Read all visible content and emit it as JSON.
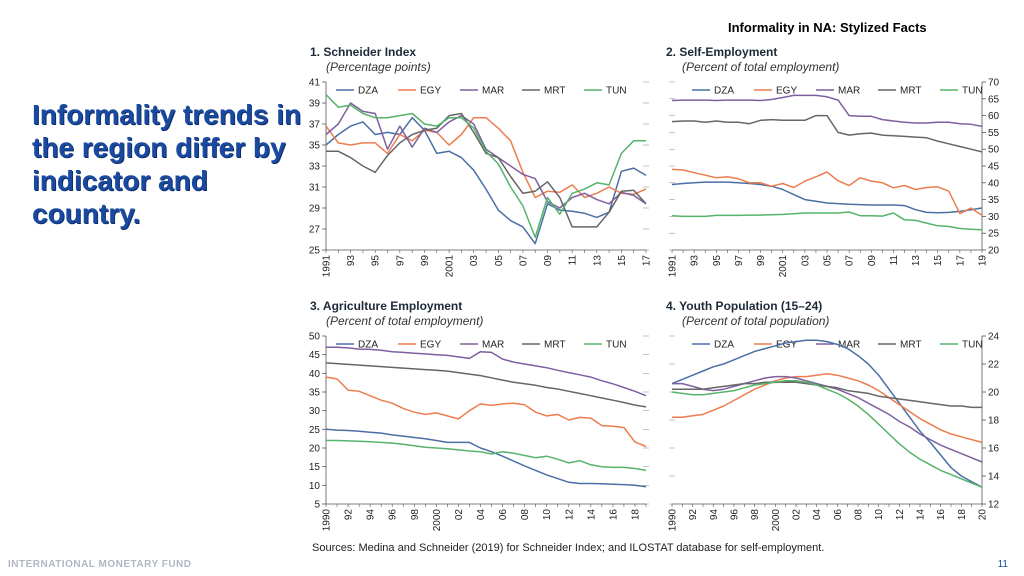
{
  "page": {
    "header": "Informality in NA: Stylized Facts",
    "headline": "Informality trends in the region differ by indicator and country.",
    "org": "INTERNATIONAL MONETARY FUND",
    "page_number": "11",
    "source": "Sources: Medina and Schneider (2019) for Schneider Index; and ILOSTAT database for self-employment."
  },
  "colors": {
    "DZA": "#4a6fa5",
    "EGY": "#ed7d4f",
    "MAR": "#7f5f9f",
    "MRT": "#666666",
    "TUN": "#56b36a"
  },
  "chart_data": [
    {
      "type": "line",
      "title": "1. Schneider Index",
      "subtitle": "(Percentage points)",
      "axis_side": "left",
      "ylim": [
        25,
        41
      ],
      "yticks": [
        25,
        27,
        29,
        31,
        33,
        35,
        37,
        39,
        41
      ],
      "x": [
        1991,
        1992,
        1993,
        1994,
        1995,
        1996,
        1997,
        1998,
        1999,
        2000,
        2001,
        2002,
        2003,
        2004,
        2005,
        2006,
        2007,
        2008,
        2009,
        2010,
        2011,
        2012,
        2013,
        2014,
        2015,
        2016,
        2017
      ],
      "xtick_labels": [
        "1991",
        "93",
        "95",
        "97",
        "99",
        "2001",
        "03",
        "05",
        "07",
        "09",
        "11",
        "13",
        "15",
        "17"
      ],
      "legend": [
        "DZA",
        "EGY",
        "MAR",
        "MRT",
        "TUN"
      ],
      "series": [
        {
          "name": "DZA",
          "values": [
            35,
            36,
            36.8,
            37.2,
            36,
            36.2,
            36,
            37.6,
            36.4,
            34.2,
            34.4,
            33.8,
            32.6,
            30.8,
            28.8,
            27.8,
            27.2,
            25.6,
            29.4,
            28.8,
            28.7,
            28.5,
            28.1,
            28.6,
            32.5,
            32.8,
            32.1
          ]
        },
        {
          "name": "EGY",
          "values": [
            36.8,
            35.2,
            35,
            35.2,
            35.2,
            34.2,
            36,
            35.4,
            36.4,
            36.2,
            35,
            36,
            37.6,
            37.6,
            36.6,
            35.4,
            32.4,
            30,
            30.6,
            30.5,
            31.2,
            30,
            30.4,
            31,
            30.4,
            30.3,
            30.8
          ]
        },
        {
          "name": "MAR",
          "values": [
            36,
            37,
            39,
            38.2,
            38,
            34.6,
            36.8,
            34.8,
            36.6,
            36.2,
            37.2,
            37.8,
            37,
            34.6,
            33.8,
            33,
            32.2,
            31.8,
            29.6,
            29,
            30,
            30.4,
            29.8,
            29.4,
            30.5,
            30.2,
            29.4
          ]
        },
        {
          "name": "MRT",
          "values": [
            34.4,
            34.4,
            33.8,
            33,
            32.4,
            34,
            35.2,
            36,
            36.4,
            36.6,
            37.8,
            38,
            36.2,
            34.2,
            33.8,
            32,
            30.4,
            30.6,
            31.5,
            30,
            27.2,
            27.2,
            27.2,
            28.6,
            30.6,
            30.7,
            29.4
          ]
        },
        {
          "name": "TUN",
          "values": [
            39.8,
            38.6,
            38.8,
            38,
            37.6,
            37.6,
            37.8,
            38,
            37,
            36.8,
            37.6,
            37.6,
            36.6,
            34.4,
            33.2,
            31,
            29.2,
            26.2,
            30,
            28.4,
            30.4,
            30.8,
            31.4,
            31.2,
            34.2,
            35.4,
            35.4
          ]
        }
      ]
    },
    {
      "type": "line",
      "title": "2. Self-Employment",
      "subtitle": "(Percent of total employment)",
      "axis_side": "right",
      "ylim": [
        20,
        70
      ],
      "yticks": [
        20,
        25,
        30,
        35,
        40,
        45,
        50,
        55,
        60,
        65,
        70
      ],
      "x": [
        1991,
        1992,
        1993,
        1994,
        1995,
        1996,
        1997,
        1998,
        1999,
        2000,
        2001,
        2002,
        2003,
        2004,
        2005,
        2006,
        2007,
        2008,
        2009,
        2010,
        2011,
        2012,
        2013,
        2014,
        2015,
        2016,
        2017,
        2018,
        2019
      ],
      "xtick_labels": [
        "1991",
        "93",
        "95",
        "97",
        "99",
        "2001",
        "03",
        "05",
        "07",
        "09",
        "11",
        "13",
        "15",
        "17",
        "19"
      ],
      "legend": [
        "DZA",
        "EGY",
        "MAR",
        "MRT",
        "TUN"
      ],
      "series": [
        {
          "name": "DZA",
          "values": [
            39.5,
            39.8,
            40,
            40.2,
            40.2,
            40.2,
            40,
            39.8,
            39.5,
            39,
            38,
            36.5,
            35,
            34.5,
            34,
            33.8,
            33.6,
            33.5,
            33.4,
            33.4,
            33.4,
            33.2,
            32,
            31.2,
            31.1,
            31.2,
            31.5,
            32,
            32.5
          ]
        },
        {
          "name": "EGY",
          "values": [
            44,
            43.8,
            43,
            42.3,
            41.5,
            41.8,
            41.2,
            40,
            40,
            39,
            39.8,
            38.6,
            40.5,
            41.8,
            43.2,
            40.6,
            39.2,
            41.5,
            40.5,
            40,
            38.5,
            39.2,
            38,
            38.6,
            38.8,
            37.5,
            30.8,
            32.5,
            30.3
          ]
        },
        {
          "name": "MAR",
          "values": [
            64.5,
            64.6,
            64.6,
            64.6,
            64.5,
            64.6,
            64.6,
            64.6,
            64.5,
            64.8,
            65.4,
            66,
            66,
            66,
            65.6,
            64.6,
            60,
            59.8,
            59.8,
            58.8,
            58.4,
            58,
            57.8,
            57.8,
            58,
            58,
            57.6,
            57.4,
            56.8
          ]
        },
        {
          "name": "MRT",
          "values": [
            58.2,
            58.4,
            58.4,
            58,
            58.4,
            58,
            58,
            57.6,
            58.6,
            58.8,
            58.6,
            58.6,
            58.6,
            60,
            60,
            55,
            54.2,
            54.6,
            54.8,
            54.2,
            54,
            53.8,
            53.6,
            53.4,
            52.4,
            51.6,
            50.8,
            50,
            49.2
          ]
        },
        {
          "name": "TUN",
          "values": [
            30.2,
            30,
            30,
            30,
            30.3,
            30.3,
            30.3,
            30.4,
            30.4,
            30.5,
            30.6,
            30.8,
            31,
            31,
            31,
            31,
            31.3,
            30.2,
            30.2,
            30.1,
            31,
            29,
            28.8,
            28,
            27.2,
            27,
            26.4,
            26.2,
            26
          ]
        }
      ]
    },
    {
      "type": "line",
      "title": "3. Agriculture Employment",
      "subtitle": "(Percent of total employment)",
      "axis_side": "left",
      "ylim": [
        5,
        50
      ],
      "yticks": [
        5,
        10,
        15,
        20,
        25,
        30,
        35,
        40,
        45,
        50
      ],
      "x": [
        1990,
        1991,
        1992,
        1993,
        1994,
        1995,
        1996,
        1997,
        1998,
        1999,
        2000,
        2001,
        2002,
        2003,
        2004,
        2005,
        2006,
        2007,
        2008,
        2009,
        2010,
        2011,
        2012,
        2013,
        2014,
        2015,
        2016,
        2017,
        2018,
        2019
      ],
      "xtick_labels": [
        "1990",
        "92",
        "94",
        "96",
        "98",
        "2000",
        "02",
        "04",
        "06",
        "08",
        "10",
        "12",
        "14",
        "16",
        "18"
      ],
      "legend": [
        "DZA",
        "EGY",
        "MAR",
        "MRT",
        "TUN"
      ],
      "series": [
        {
          "name": "DZA",
          "values": [
            25,
            24.8,
            24.7,
            24.5,
            24.2,
            24,
            23.5,
            23.2,
            22.8,
            22.5,
            22,
            21.5,
            21.5,
            21.5,
            20,
            19,
            17.8,
            16.5,
            15.2,
            14,
            12.8,
            11.8,
            10.8,
            10.5,
            10.5,
            10.4,
            10.3,
            10.2,
            10,
            9.6
          ]
        },
        {
          "name": "EGY",
          "values": [
            39,
            38.5,
            35.5,
            35.2,
            34,
            32.8,
            32,
            30.6,
            29.6,
            29,
            29.4,
            28.6,
            27.8,
            30,
            31.8,
            31.4,
            31.8,
            32,
            31.6,
            29.6,
            28.6,
            29,
            27.5,
            28.2,
            28,
            26,
            25.8,
            25.5,
            21.6,
            20.4
          ]
        },
        {
          "name": "MAR",
          "values": [
            47,
            47,
            46.8,
            46.5,
            46.4,
            46.2,
            45.8,
            45.6,
            45.4,
            45.2,
            45,
            44.8,
            44.4,
            44,
            45.8,
            45.6,
            43.8,
            43,
            42.5,
            42,
            41.5,
            40.8,
            40.2,
            39.6,
            39,
            38,
            37.2,
            36.2,
            35.2,
            34
          ]
        },
        {
          "name": "MRT",
          "values": [
            42.8,
            42.6,
            42.4,
            42.2,
            42,
            41.8,
            41.6,
            41.4,
            41.2,
            41,
            40.8,
            40.6,
            40.2,
            39.8,
            39.4,
            38.8,
            38.2,
            37.6,
            37.2,
            36.8,
            36.2,
            35.8,
            35.2,
            34.6,
            34,
            33.4,
            32.8,
            32.2,
            31.5,
            31
          ]
        },
        {
          "name": "TUN",
          "values": [
            22,
            22,
            21.9,
            21.8,
            21.7,
            21.5,
            21.3,
            21,
            20.6,
            20.2,
            20,
            19.8,
            19.5,
            19.2,
            19,
            18.4,
            19,
            18.6,
            18,
            17.4,
            17.8,
            17,
            16,
            16.6,
            15.5,
            15,
            14.8,
            14.8,
            14.5,
            14
          ]
        }
      ]
    },
    {
      "type": "line",
      "title": "4. Youth Population (15–24)",
      "subtitle": "(Percent of total population)",
      "axis_side": "right",
      "ylim": [
        12,
        24
      ],
      "yticks": [
        12,
        14,
        16,
        18,
        20,
        22,
        24
      ],
      "x": [
        1990,
        1991,
        1992,
        1993,
        1994,
        1995,
        1996,
        1997,
        1998,
        1999,
        2000,
        2001,
        2002,
        2003,
        2004,
        2005,
        2006,
        2007,
        2008,
        2009,
        2010,
        2011,
        2012,
        2013,
        2014,
        2015,
        2016,
        2017,
        2018,
        2019,
        2020
      ],
      "xtick_labels": [
        "1990",
        "92",
        "94",
        "96",
        "98",
        "2000",
        "02",
        "04",
        "06",
        "08",
        "10",
        "12",
        "14",
        "16",
        "18",
        "20"
      ],
      "legend": [
        "DZA",
        "EGY",
        "MAR",
        "MRT",
        "TUN"
      ],
      "series": [
        {
          "name": "DZA",
          "values": [
            20.6,
            20.9,
            21.2,
            21.5,
            21.8,
            22,
            22.3,
            22.6,
            22.9,
            23.1,
            23.3,
            23.5,
            23.6,
            23.7,
            23.7,
            23.6,
            23.4,
            23.1,
            22.6,
            22,
            21.2,
            20.2,
            19.2,
            18.2,
            17.2,
            16.4,
            15.5,
            14.6,
            14,
            13.6,
            13.2
          ]
        },
        {
          "name": "EGY",
          "values": [
            18.2,
            18.2,
            18.3,
            18.4,
            18.7,
            19,
            19.4,
            19.8,
            20.2,
            20.5,
            20.8,
            21,
            21.1,
            21.1,
            21.2,
            21.3,
            21.2,
            21,
            20.8,
            20.5,
            20.1,
            19.6,
            19.1,
            18.6,
            18.1,
            17.7,
            17.3,
            17,
            16.8,
            16.6,
            16.4
          ]
        },
        {
          "name": "MAR",
          "values": [
            20.6,
            20.6,
            20.4,
            20.2,
            20.1,
            20.2,
            20.4,
            20.6,
            20.8,
            21,
            21.1,
            21.1,
            21,
            20.8,
            20.6,
            20.4,
            20.2,
            19.9,
            19.6,
            19.2,
            18.8,
            18.4,
            17.9,
            17.5,
            17,
            16.6,
            16.2,
            15.9,
            15.6,
            15.3,
            15
          ]
        },
        {
          "name": "MRT",
          "values": [
            20.2,
            20.2,
            20.2,
            20.2,
            20.3,
            20.4,
            20.5,
            20.6,
            20.6,
            20.7,
            20.7,
            20.7,
            20.7,
            20.6,
            20.5,
            20.4,
            20.3,
            20.1,
            20,
            19.9,
            19.7,
            19.6,
            19.5,
            19.4,
            19.3,
            19.2,
            19.1,
            19,
            19,
            18.9,
            18.9
          ]
        },
        {
          "name": "TUN",
          "values": [
            20,
            19.9,
            19.8,
            19.8,
            19.9,
            20,
            20.1,
            20.3,
            20.5,
            20.6,
            20.7,
            20.8,
            20.8,
            20.7,
            20.5,
            20.2,
            19.9,
            19.5,
            19,
            18.4,
            17.7,
            17,
            16.3,
            15.7,
            15.2,
            14.8,
            14.4,
            14.1,
            13.8,
            13.5,
            13.2
          ]
        }
      ]
    }
  ]
}
